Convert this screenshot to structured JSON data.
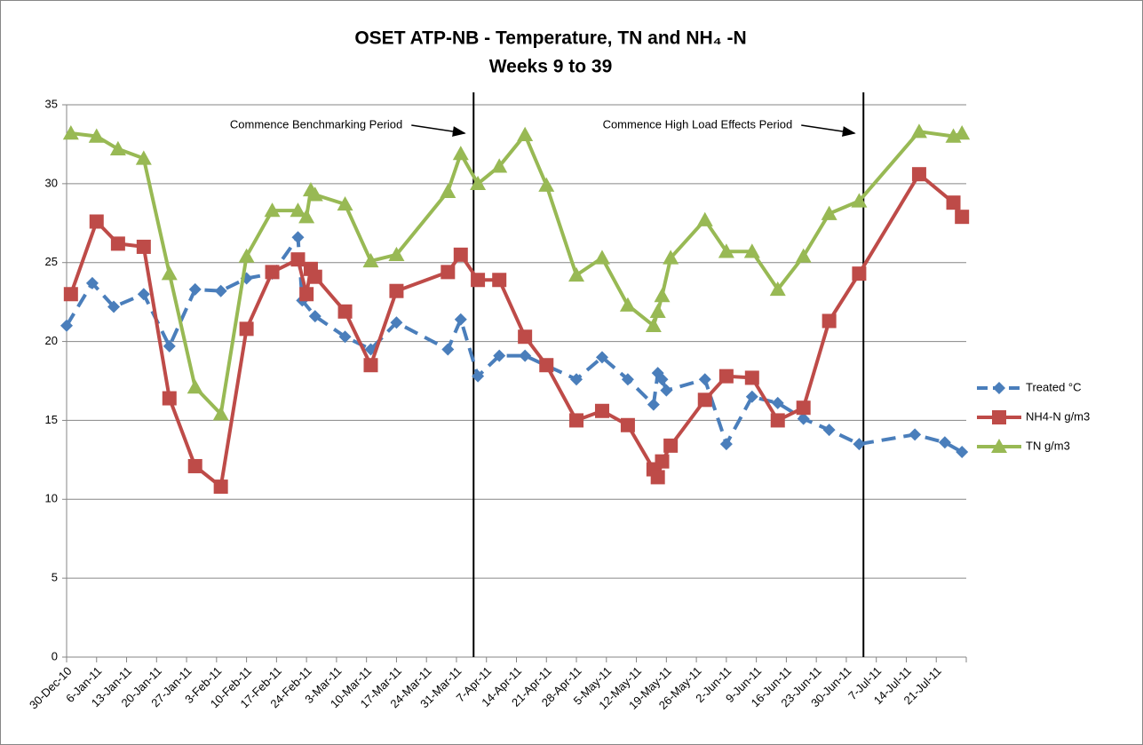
{
  "chart_data": {
    "type": "line",
    "title": "OSET ATP-NB - Temperature, TN and NH₄ -N",
    "subtitle": "Weeks 9 to 39",
    "xlim": [
      "2010-12-30",
      "2011-07-28"
    ],
    "xticks": [
      {
        "value": "2010-12-30",
        "label": "30-Dec-10"
      },
      {
        "value": "2011-01-06",
        "label": "6-Jan-11"
      },
      {
        "value": "2011-01-13",
        "label": "13-Jan-11"
      },
      {
        "value": "2011-01-20",
        "label": "20-Jan-11"
      },
      {
        "value": "2011-01-27",
        "label": "27-Jan-11"
      },
      {
        "value": "2011-02-03",
        "label": "3-Feb-11"
      },
      {
        "value": "2011-02-10",
        "label": "10-Feb-11"
      },
      {
        "value": "2011-02-17",
        "label": "17-Feb-11"
      },
      {
        "value": "2011-02-24",
        "label": "24-Feb-11"
      },
      {
        "value": "2011-03-03",
        "label": "3-Mar-11"
      },
      {
        "value": "2011-03-10",
        "label": "10-Mar-11"
      },
      {
        "value": "2011-03-17",
        "label": "17-Mar-11"
      },
      {
        "value": "2011-03-24",
        "label": "24-Mar-11"
      },
      {
        "value": "2011-03-31",
        "label": "31-Mar-11"
      },
      {
        "value": "2011-04-07",
        "label": "7-Apr-11"
      },
      {
        "value": "2011-04-14",
        "label": "14-Apr-11"
      },
      {
        "value": "2011-04-21",
        "label": "21-Apr-11"
      },
      {
        "value": "2011-04-28",
        "label": "28-Apr-11"
      },
      {
        "value": "2011-05-05",
        "label": "5-May-11"
      },
      {
        "value": "2011-05-12",
        "label": "12-May-11"
      },
      {
        "value": "2011-05-19",
        "label": "19-May-11"
      },
      {
        "value": "2011-05-26",
        "label": "26-May-11"
      },
      {
        "value": "2011-06-02",
        "label": "2-Jun-11"
      },
      {
        "value": "2011-06-09",
        "label": "9-Jun-11"
      },
      {
        "value": "2011-06-16",
        "label": "16-Jun-11"
      },
      {
        "value": "2011-06-23",
        "label": "23-Jun-11"
      },
      {
        "value": "2011-06-30",
        "label": "30-Jun-11"
      },
      {
        "value": "2011-07-07",
        "label": "7-Jul-11"
      },
      {
        "value": "2011-07-14",
        "label": "14-Jul-11"
      },
      {
        "value": "2011-07-21",
        "label": "21-Jul-11"
      }
    ],
    "ylim": [
      0,
      35
    ],
    "yticks": [
      0,
      5,
      10,
      15,
      20,
      25,
      30,
      35
    ],
    "grid": true,
    "legend": "right",
    "series": [
      {
        "name": "Treated °C",
        "color": "#4a7ebb",
        "marker": "diamond",
        "dashed": true,
        "x": [
          "2010-12-30",
          "2011-01-05",
          "2011-01-10",
          "2011-01-17",
          "2011-01-23",
          "2011-01-29",
          "2011-02-04",
          "2011-02-10",
          "2011-02-16",
          "2011-02-22",
          "2011-02-23",
          "2011-02-26",
          "2011-03-05",
          "2011-03-11",
          "2011-03-17",
          "2011-03-29",
          "2011-04-01",
          "2011-04-05",
          "2011-04-10",
          "2011-04-16",
          "2011-04-28",
          "2011-05-04",
          "2011-05-10",
          "2011-05-16",
          "2011-05-17",
          "2011-05-18",
          "2011-05-19",
          "2011-05-28",
          "2011-06-02",
          "2011-06-08",
          "2011-06-14",
          "2011-06-20",
          "2011-06-26",
          "2011-07-03",
          "2011-07-16",
          "2011-07-23",
          "2011-07-27"
        ],
        "values": [
          21.0,
          23.7,
          22.2,
          23.0,
          19.7,
          23.3,
          23.2,
          24.0,
          24.3,
          26.6,
          22.6,
          21.6,
          20.3,
          19.5,
          21.2,
          19.5,
          21.4,
          17.8,
          19.1,
          19.1,
          17.6,
          19.0,
          17.6,
          16.0,
          18.0,
          17.6,
          16.9,
          17.6,
          13.5,
          16.5,
          16.1,
          15.1,
          14.4,
          13.5,
          14.1,
          13.6,
          13.0
        ]
      },
      {
        "name": "NH4-N g/m3",
        "color": "#be4b48",
        "marker": "square",
        "dashed": false,
        "x": [
          "2010-12-31",
          "2011-01-06",
          "2011-01-11",
          "2011-01-17",
          "2011-01-23",
          "2011-01-29",
          "2011-02-04",
          "2011-02-10",
          "2011-02-16",
          "2011-02-22",
          "2011-02-24",
          "2011-02-25",
          "2011-02-26",
          "2011-03-05",
          "2011-03-11",
          "2011-03-17",
          "2011-03-29",
          "2011-04-01",
          "2011-04-05",
          "2011-04-10",
          "2011-04-16",
          "2011-04-21",
          "2011-04-28",
          "2011-05-04",
          "2011-05-10",
          "2011-05-16",
          "2011-05-17",
          "2011-05-18",
          "2011-05-20",
          "2011-05-28",
          "2011-06-02",
          "2011-06-08",
          "2011-06-14",
          "2011-06-20",
          "2011-06-26",
          "2011-07-03",
          "2011-07-17",
          "2011-07-25",
          "2011-07-27"
        ],
        "values": [
          23.0,
          27.6,
          26.2,
          26.0,
          16.4,
          12.1,
          10.8,
          20.8,
          24.4,
          25.2,
          23.0,
          24.6,
          24.1,
          21.9,
          18.5,
          23.2,
          24.4,
          25.5,
          23.9,
          23.9,
          20.3,
          18.5,
          15.0,
          15.6,
          14.7,
          11.9,
          11.4,
          12.4,
          13.4,
          16.3,
          17.8,
          17.7,
          15.0,
          15.8,
          21.3,
          24.3,
          30.6,
          28.8,
          27.9
        ]
      },
      {
        "name": "TN g/m3",
        "color": "#98b954",
        "marker": "triangle",
        "dashed": false,
        "x": [
          "2010-12-31",
          "2011-01-06",
          "2011-01-11",
          "2011-01-17",
          "2011-01-23",
          "2011-01-29",
          "2011-02-04",
          "2011-02-10",
          "2011-02-16",
          "2011-02-22",
          "2011-02-24",
          "2011-02-25",
          "2011-02-26",
          "2011-03-05",
          "2011-03-11",
          "2011-03-17",
          "2011-03-29",
          "2011-04-01",
          "2011-04-05",
          "2011-04-10",
          "2011-04-16",
          "2011-04-21",
          "2011-04-28",
          "2011-05-04",
          "2011-05-10",
          "2011-05-16",
          "2011-05-17",
          "2011-05-18",
          "2011-05-20",
          "2011-05-28",
          "2011-06-02",
          "2011-06-08",
          "2011-06-14",
          "2011-06-20",
          "2011-06-26",
          "2011-07-03",
          "2011-07-17",
          "2011-07-25",
          "2011-07-27"
        ],
        "values": [
          33.2,
          33.0,
          32.2,
          31.6,
          24.3,
          17.1,
          15.4,
          25.4,
          28.3,
          28.3,
          27.9,
          29.6,
          29.3,
          28.7,
          25.1,
          25.5,
          29.5,
          31.9,
          30.0,
          31.1,
          33.1,
          29.9,
          24.2,
          25.3,
          22.3,
          21.0,
          21.9,
          22.9,
          25.3,
          27.7,
          25.7,
          25.7,
          23.3,
          25.4,
          28.1,
          28.9,
          33.3,
          33.0,
          33.2
        ]
      }
    ],
    "annotations": [
      {
        "text": "Commence Benchmarking Period",
        "x": "2011-04-04"
      },
      {
        "text": "Commence High Load Effects Period",
        "x": "2011-07-04"
      }
    ]
  }
}
